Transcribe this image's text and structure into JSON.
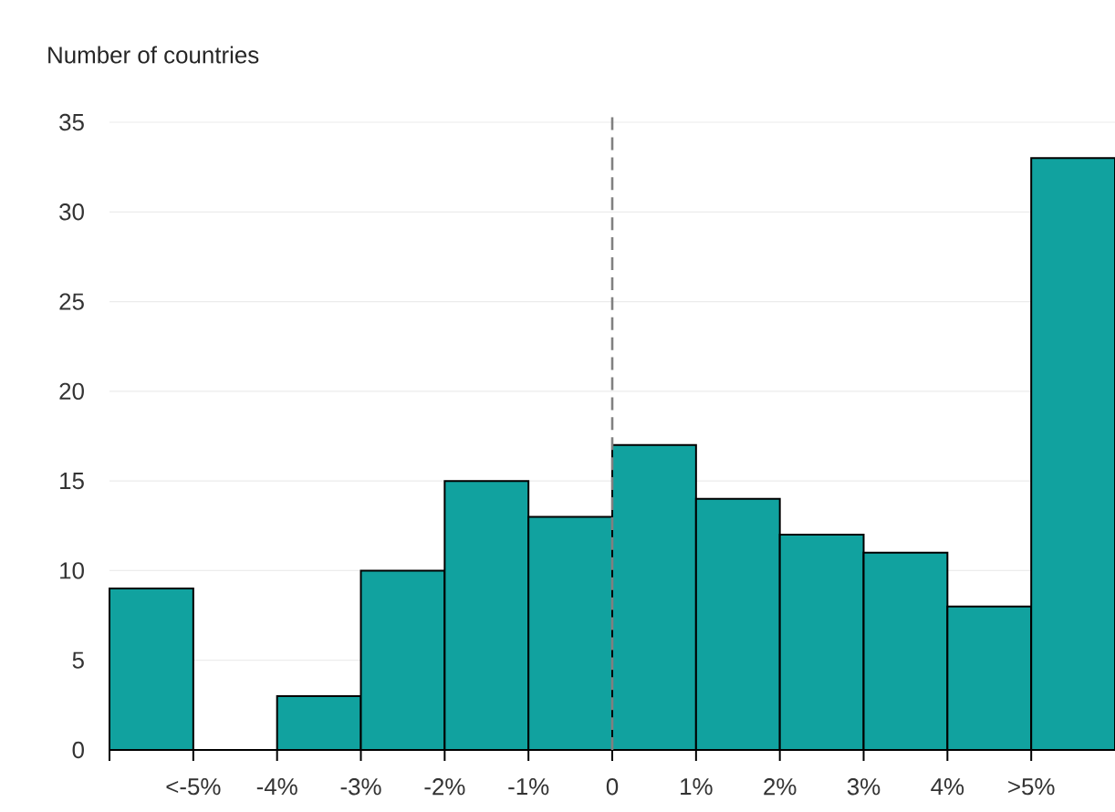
{
  "chart_data": {
    "type": "histogram",
    "ylabel": "Number of countries",
    "bins": [
      -6,
      -5,
      -4,
      -3,
      -2,
      -1,
      0,
      1,
      2,
      3,
      4,
      5,
      6
    ],
    "values": [
      9,
      0,
      3,
      10,
      15,
      13,
      17,
      14,
      12,
      11,
      8,
      33
    ],
    "color": "#11a29f",
    "xlim": [
      -6,
      6
    ],
    "xticks": [
      {
        "value": -6,
        "label": null
      },
      {
        "value": -5,
        "label": "<-5%"
      },
      {
        "value": -4,
        "label": "-4%"
      },
      {
        "value": -3,
        "label": "-3%"
      },
      {
        "value": -2,
        "label": "-2%"
      },
      {
        "value": -1,
        "label": "-1%"
      },
      {
        "value": 0,
        "label": "0"
      },
      {
        "value": 1,
        "label": "1%"
      },
      {
        "value": 2,
        "label": "2%"
      },
      {
        "value": 3,
        "label": "3%"
      },
      {
        "value": 4,
        "label": "4%"
      },
      {
        "value": 5,
        "label": ">5%"
      }
    ],
    "ylim": [
      0,
      35
    ],
    "yticks": [
      0,
      5,
      10,
      15,
      20,
      25,
      30,
      35
    ],
    "grid": "y",
    "ref_lines": [
      {
        "axis": "x",
        "value": 0,
        "color": "#808080",
        "line_style": "dashed"
      }
    ]
  }
}
